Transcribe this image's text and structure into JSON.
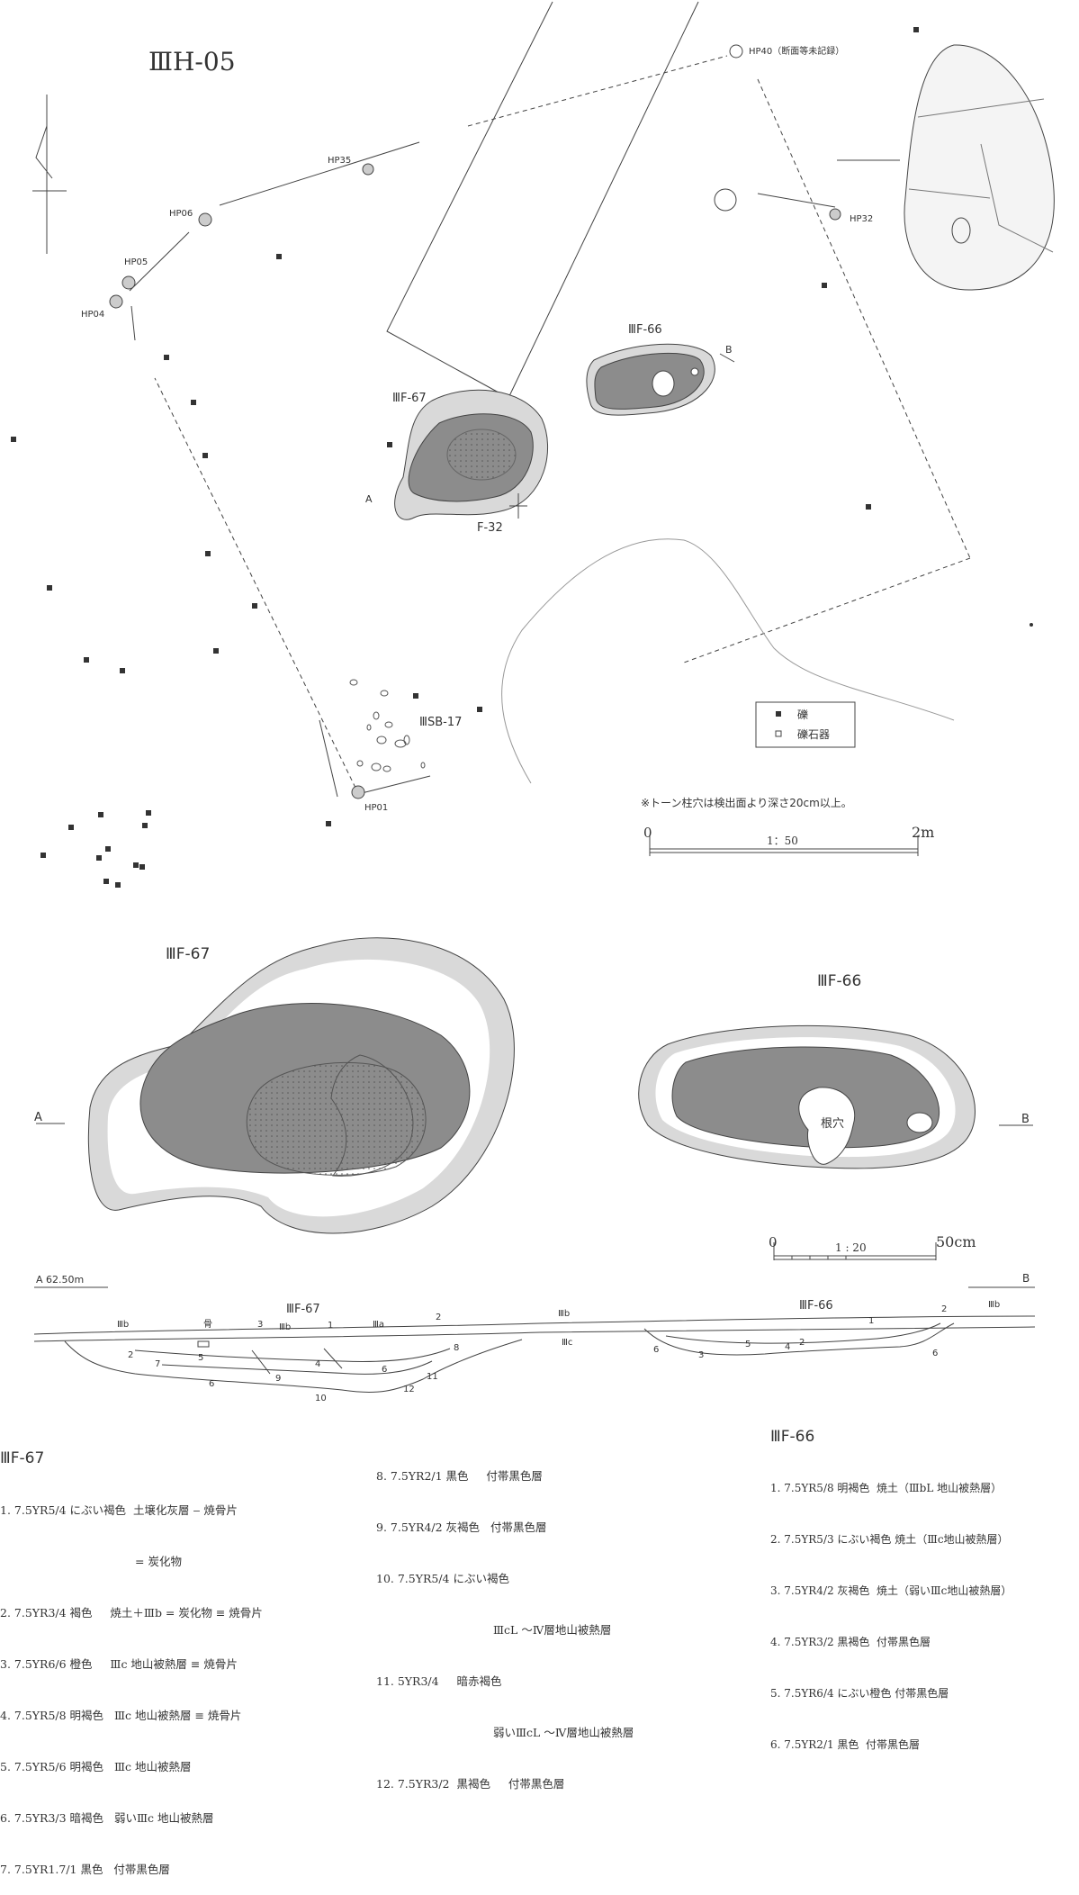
{
  "plan": {
    "title": "ⅢH-05",
    "hp_labels": {
      "hp40": "HP40（断面等未記録）",
      "hp35": "HP35",
      "hp06": "HP06",
      "hp05": "HP05",
      "hp04": "HP04",
      "hp32": "HP32",
      "hp01": "HP01"
    },
    "features": {
      "f66": "ⅢF-66",
      "f67": "ⅢF-67",
      "f32": "F-32",
      "sb17": "ⅢSB-17"
    },
    "section_marks": {
      "a": "A",
      "b": "B"
    },
    "legend": {
      "gravel": "礫",
      "gravel_tool": "礫石器"
    },
    "note": "※トーン柱穴は検出面より深さ20cm以上。",
    "scale": {
      "zero": "0",
      "ratio": "1：50",
      "end": "2m"
    }
  },
  "detail": {
    "f67_title": "ⅢF-67",
    "f66_title": "ⅢF-66",
    "a_label": "A",
    "b_label": "B",
    "root_hole": "根穴",
    "scale": {
      "zero": "0",
      "ratio": "1 : 20",
      "end": "50cm"
    }
  },
  "section": {
    "a_elev": "A 62.50m",
    "b_label": "B",
    "f67_title": "ⅢF-67",
    "f66_title": "ⅢF-66",
    "layers": {
      "IIIa": "Ⅲa",
      "IIIb": "Ⅲb",
      "IIIc": "Ⅲc",
      "bone": "骨"
    },
    "numbers": [
      "1",
      "2",
      "3",
      "4",
      "5",
      "6",
      "7",
      "8",
      "9",
      "10",
      "11",
      "12"
    ]
  },
  "descriptions": {
    "f67_title": "ⅢF-67",
    "f67_left": [
      "1. 7.5YR5/4 にぶい褐色  土壌化灰層 ‒ 焼骨片",
      "= 炭化物",
      "2. 7.5YR3/4 褐色     焼土＋Ⅲb = 炭化物 ≡ 焼骨片",
      "3. 7.5YR6/6 橙色     Ⅲc 地山被熱層 ≡ 焼骨片",
      "4. 7.5YR5/8 明褐色   Ⅲc 地山被熱層 ≡ 焼骨片",
      "5. 7.5YR5/6 明褐色   Ⅲc 地山被熱層",
      "6. 7.5YR3/3 暗褐色   弱いⅢc 地山被熱層",
      "7. 7.5YR1.7/1 黒色   付帯黒色層"
    ],
    "f67_right": [
      "8. 7.5YR2/1 黒色     付帯黒色層",
      "9. 7.5YR4/2 灰褐色   付帯黒色層",
      "10. 7.5YR5/4 にぶい褐色",
      "ⅢcL ～Ⅳ層地山被熱層",
      "11. 5YR3/4     暗赤褐色",
      "弱いⅢcL ～Ⅳ層地山被熱層",
      "12. 7.5YR3/2  黒褐色     付帯黒色層"
    ],
    "f66_title": "ⅢF-66",
    "f66": [
      "1. 7.5YR5/8 明褐色  焼土（ⅢbL 地山被熱層）",
      "2. 7.5YR5/3 にぶい褐色 焼土（Ⅲc地山被熱層）",
      "3. 7.5YR4/2 灰褐色  焼土（弱いⅢc地山被熱層）",
      "4. 7.5YR3/2 黒褐色  付帯黒色層",
      "5. 7.5YR6/4 にぶい橙色 付帯黒色層",
      "6. 7.5YR2/1 黒色  付帯黒色層"
    ]
  },
  "colors": {
    "ink": "#333333",
    "fill_dark": "#8c8c8c",
    "fill_light": "#d9d9d9"
  }
}
